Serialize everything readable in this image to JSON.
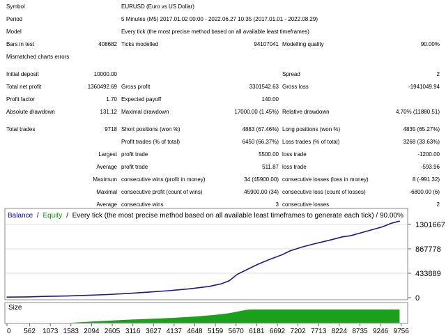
{
  "report": {
    "symbol": {
      "label": "Symbol",
      "value": "EURUSD (Euro vs US Dollar)"
    },
    "period": {
      "label": "Period",
      "value": "5 Minutes (M5) 2017.01.02 00:00 - 2022.06.27 10:35 (2017.01.01 - 2022.08.29)"
    },
    "model": {
      "label": "Model",
      "value": "Every tick (the most precise method based on all available least timeframes)"
    },
    "bars_in_test": {
      "label": "Bars in test",
      "value": "408682"
    },
    "ticks_modelled": {
      "label": "Ticks modelled",
      "value": "94107041"
    },
    "modelling_quality": {
      "label": "Modelling quality",
      "value": "90.00%"
    },
    "mismatched": {
      "label": "Mismatched charts errors",
      "value": ""
    },
    "initial_deposit": {
      "label": "Initial deposit",
      "value": "10000.00"
    },
    "spread": {
      "label": "Spread",
      "value": "2"
    },
    "total_net_profit": {
      "label": "Total net profit",
      "value": "1360492.69"
    },
    "gross_profit": {
      "label": "Gross profit",
      "value": "3301542.63"
    },
    "gross_loss": {
      "label": "Gross loss",
      "value": "-1941049.94"
    },
    "profit_factor": {
      "label": "Profit factor",
      "value": "1.70"
    },
    "expected_payoff": {
      "label": "Expected payoff",
      "value": "140.00"
    },
    "absolute_drawdown": {
      "label": "Absolute drawdown",
      "value": "131.12"
    },
    "maximal_drawdown": {
      "label": "Maximal drawdown",
      "value": "17000.00 (1.45%)"
    },
    "relative_drawdown": {
      "label": "Relative drawdown",
      "value": "4.70% (11880.51)"
    },
    "total_trades": {
      "label": "Total trades",
      "value": "9718"
    },
    "short_positions": {
      "label": "Short positions (won %)",
      "value": "4883 (67.46%)"
    },
    "long_positions": {
      "label": "Long positions (won %)",
      "value": "4835 (65.27%)"
    },
    "profit_trades": {
      "label": "Profit trades (% of total)",
      "value": "6450 (66.37%)"
    },
    "loss_trades": {
      "label": "Loss trades (% of total)",
      "value": "3268 (33.63%)"
    },
    "largest": {
      "label": "Largest",
      "profit_label": "profit trade",
      "profit_value": "5500.00",
      "loss_label": "loss trade",
      "loss_value": "-1200.00"
    },
    "average": {
      "label": "Average",
      "profit_label": "profit trade",
      "profit_value": "511.87",
      "loss_label": "loss trade",
      "loss_value": "-593.96"
    },
    "maximum": {
      "label": "Maximum",
      "wins_label": "consecutive wins (profit in money)",
      "wins_value": "34 (45900.00)",
      "losses_label": "consecutive losses (loss in money)",
      "losses_value": "8 (-991.32)"
    },
    "maximal": {
      "label": "Maximal",
      "wins_label": "consecutive profit (count of wins)",
      "wins_value": "45900.00 (34)",
      "losses_label": "consecutive loss (count of losses)",
      "losses_value": "-6800.00 (6)"
    },
    "average_consec": {
      "label": "Average",
      "wins_label": "consecutive wins",
      "wins_value": "3",
      "losses_label": "consecutive losses",
      "losses_value": "2"
    }
  },
  "chart_data": {
    "type": "line",
    "legend": {
      "balance": "Balance",
      "sep1": "/",
      "equity": "Equity",
      "sep2": "/",
      "desc": "Every tick (the most precise method based on all available least timeframes to generate each tick) / 90.00%"
    },
    "colors": {
      "balance": "#1a1a8c",
      "equity": "#1aa01a",
      "size": "#1aa01a",
      "legend_balance": "#0000cc",
      "legend_equity": "#009900"
    },
    "y_ticks": [
      "1301667",
      "867778",
      "433889",
      "0"
    ],
    "y_tick_values": [
      1301667,
      867778,
      433889,
      0
    ],
    "ylim": [
      0,
      1400000
    ],
    "xlim": [
      0,
      9900
    ],
    "x_ticks": [
      "0",
      "562",
      "1073",
      "1583",
      "2094",
      "2605",
      "3116",
      "3627",
      "4137",
      "4648",
      "5159",
      "5670",
      "6181",
      "6692",
      "7202",
      "7713",
      "8224",
      "8735",
      "9246",
      "9756"
    ],
    "x_tick_values": [
      0,
      562,
      1073,
      1583,
      2094,
      2605,
      3116,
      3627,
      4137,
      4648,
      5159,
      5670,
      6181,
      6692,
      7202,
      7713,
      8224,
      8735,
      9246,
      9756
    ],
    "balance": {
      "x": [
        0,
        500,
        1000,
        1500,
        2000,
        2500,
        3000,
        3500,
        4000,
        4500,
        5000,
        5300,
        5500,
        5700,
        6000,
        6200,
        6500,
        6800,
        7000,
        7300,
        7600,
        8000,
        8300,
        8500,
        8800,
        9000,
        9300,
        9500,
        9718
      ],
      "y": [
        10000,
        14000,
        23000,
        30000,
        42000,
        56000,
        76000,
        98000,
        124000,
        156000,
        199000,
        245000,
        300000,
        415000,
        520000,
        590000,
        680000,
        760000,
        830000,
        900000,
        955000,
        1025000,
        1080000,
        1100000,
        1160000,
        1200000,
        1260000,
        1320000,
        1360492
      ]
    },
    "size_label": "Size",
    "size": {
      "x": [
        0,
        1600,
        1800,
        2100,
        2600,
        3100,
        3600,
        4100,
        4600,
        5100,
        5500,
        5700,
        5900,
        6000,
        9718
      ],
      "y": [
        0,
        0,
        0.04,
        0.09,
        0.17,
        0.24,
        0.3,
        0.37,
        0.46,
        0.58,
        0.72,
        0.84,
        0.96,
        1.0,
        1.0
      ]
    }
  }
}
